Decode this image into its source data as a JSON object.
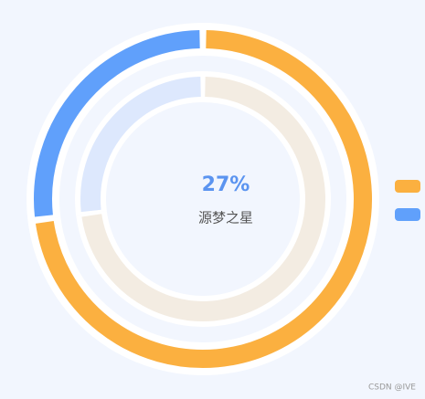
{
  "chart_data": {
    "type": "donut",
    "values": [
      73,
      27
    ],
    "value_labels": [
      null,
      "27%"
    ],
    "colors": [
      "#fbb040",
      "#60a0fb"
    ],
    "inner_colors": [
      "#f3ece2",
      "#dde8fd"
    ],
    "subtitle": "源梦之星",
    "watermark": "CSDN @IVE"
  }
}
